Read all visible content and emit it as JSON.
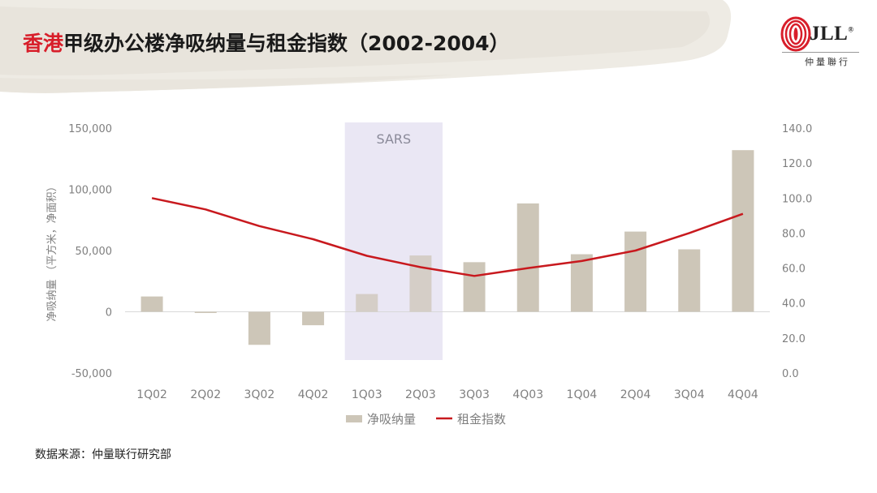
{
  "header": {
    "title_accent": "香港",
    "title_rest": "甲级办公楼净吸纳量与租金指数（2002-2004）"
  },
  "logo": {
    "brand": "JLL",
    "registered": "®",
    "subtitle": "仲量聯行",
    "icon": "jll-oval-stripes-logo"
  },
  "source_note": "数据来源：仲量联行研究部",
  "colors": {
    "accent_red": "#d81e2a",
    "bar": "#cdc6b8",
    "line": "#c8191e",
    "sars_band": "#e6e3f2",
    "axis_text": "#7f7f7f"
  },
  "chart_data": {
    "type": "bar",
    "title": "",
    "categories": [
      "1Q02",
      "2Q02",
      "3Q02",
      "4Q02",
      "1Q03",
      "2Q03",
      "3Q03",
      "4Q03",
      "1Q04",
      "2Q04",
      "3Q04",
      "4Q04"
    ],
    "series": [
      {
        "name": "净吸纳量",
        "type": "bar",
        "axis": "left",
        "values": [
          12500,
          -1000,
          -27000,
          -11000,
          14500,
          46000,
          40500,
          88500,
          47000,
          65500,
          51000,
          132000
        ]
      },
      {
        "name": "租金指数",
        "type": "line",
        "axis": "right",
        "values": [
          100,
          93.5,
          84,
          76.5,
          67,
          60.5,
          55.5,
          60,
          64,
          70,
          80,
          91
        ]
      }
    ],
    "ylabel": "净吸纳量 （平方米，净面积）",
    "ylim": [
      -50000,
      150000
    ],
    "y_ticks": [
      "-50,000",
      "0",
      "50,000",
      "100,000",
      "150,000"
    ],
    "y_tick_values": [
      -50000,
      0,
      50000,
      100000,
      150000
    ],
    "y2lim": [
      0,
      140
    ],
    "y2_ticks": [
      "0.0",
      "20.0",
      "40.0",
      "60.0",
      "80.0",
      "100.0",
      "120.0",
      "140.0"
    ],
    "y2_tick_values": [
      0,
      20,
      40,
      60,
      80,
      100,
      120,
      140
    ],
    "annotation": {
      "text": "SARS",
      "from": "1Q03",
      "to": "2Q03"
    },
    "grid": false,
    "legend": "bottom"
  }
}
